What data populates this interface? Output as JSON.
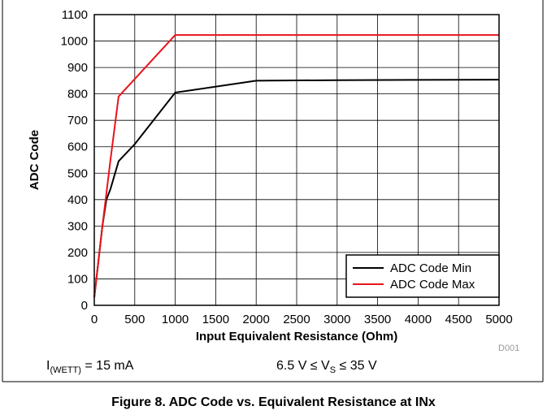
{
  "chart_data": {
    "type": "line",
    "xlabel": "Input Equivalent Resistance (Ohm)",
    "ylabel": "ADC Code",
    "xlim": [
      0,
      5000
    ],
    "ylim": [
      0,
      1100
    ],
    "xticks": [
      0,
      500,
      1000,
      1500,
      2000,
      2500,
      3000,
      3500,
      4000,
      4500,
      5000
    ],
    "yticks": [
      0,
      100,
      200,
      300,
      400,
      500,
      600,
      700,
      800,
      900,
      1000,
      1100
    ],
    "grid": true,
    "legend_position": "bottom-right",
    "series": [
      {
        "name": "ADC Code Min",
        "color": "#000000",
        "x": [
          0,
          100,
          150,
          200,
          300,
          500,
          1000,
          2000,
          3000,
          4000,
          5000
        ],
        "y": [
          30,
          300,
          400,
          440,
          545,
          610,
          805,
          850,
          852,
          853,
          854
        ]
      },
      {
        "name": "ADC Code Max",
        "color": "#e8141c",
        "x": [
          0,
          100,
          200,
          300,
          1000,
          2000,
          3000,
          4000,
          5000
        ],
        "y": [
          30,
          300,
          550,
          790,
          1023,
          1023,
          1023,
          1023,
          1023
        ]
      }
    ]
  },
  "watermark": "D001",
  "conditions": {
    "left_main": "I",
    "left_sub": "(WETT)",
    "left_rest": " = 15 mA",
    "right_pre": "6.5 V ≤ V",
    "right_sub": "S",
    "right_rest": " ≤ 35 V"
  },
  "caption": "Figure 8. ADC Code vs. Equivalent Resistance at INx"
}
